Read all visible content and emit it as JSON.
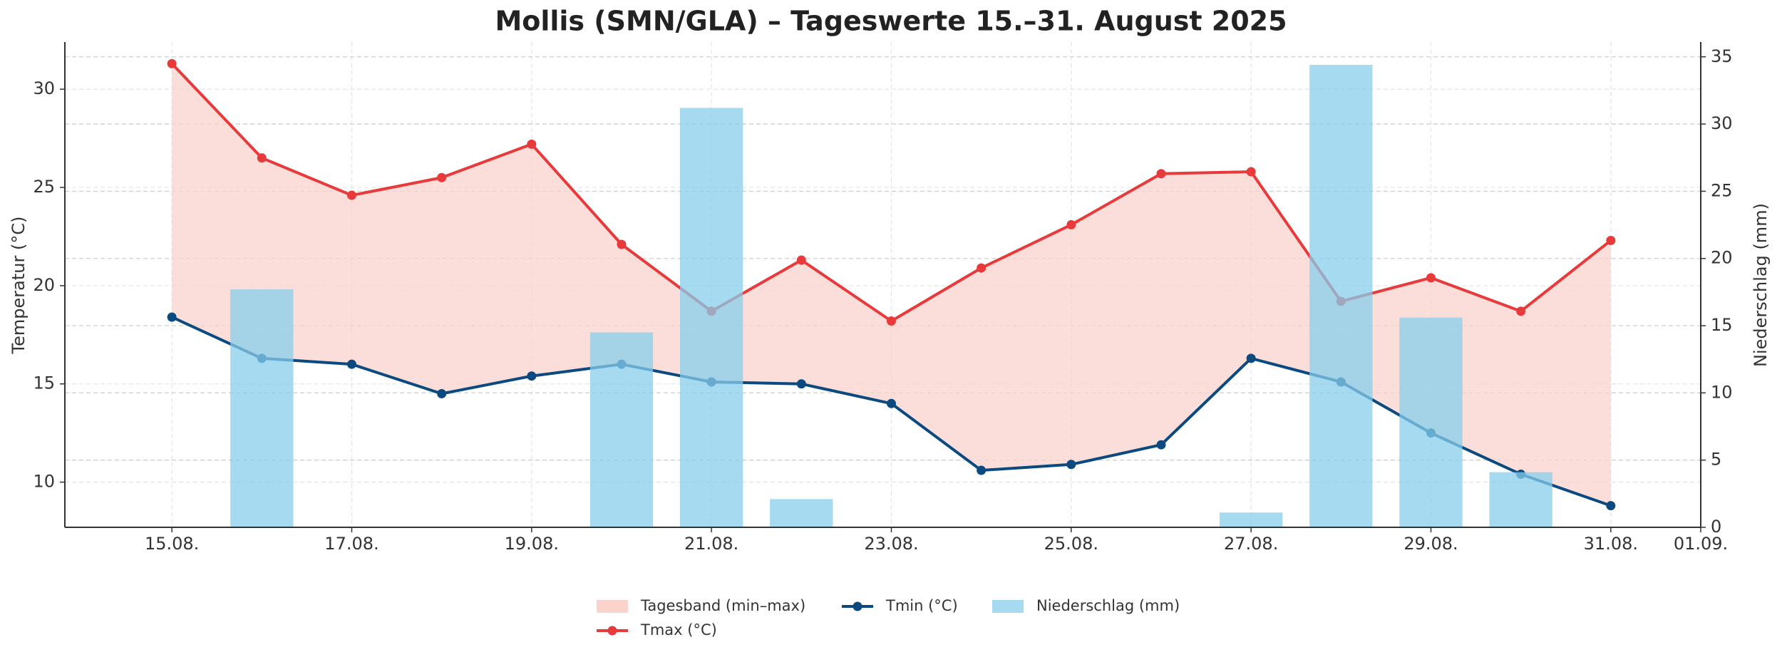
{
  "chart_data": {
    "type": "line",
    "title": "Mollis (SMN/GLA) – Tageswerte 15.–31. August 2025",
    "x": [
      "15.08.",
      "16.08.",
      "17.08.",
      "18.08.",
      "19.08.",
      "20.08.",
      "21.08.",
      "22.08.",
      "23.08.",
      "24.08.",
      "25.08.",
      "26.08.",
      "27.08.",
      "28.08.",
      "29.08.",
      "30.08.",
      "31.08."
    ],
    "xticks": [
      "15.08.",
      "17.08.",
      "19.08.",
      "21.08.",
      "23.08.",
      "25.08.",
      "27.08.",
      "29.08.",
      "31.08.",
      "01.09."
    ],
    "ylabel": "Temperatur (°C)",
    "y2label": "Niederschlag (mm)",
    "ylim": [
      7.7,
      32.4
    ],
    "yticks": [
      10,
      15,
      20,
      25,
      30
    ],
    "y2lim": [
      0,
      36.1
    ],
    "y2ticks": [
      0,
      5,
      10,
      15,
      20,
      25,
      30,
      35
    ],
    "grid": true,
    "legend": "bottom",
    "band": {
      "name": "Tagesband (min–max)",
      "color": "#f9d3cc"
    },
    "series": [
      {
        "name": "Tmax (°C)",
        "color": "#e8393b",
        "type": "line",
        "values": [
          31.3,
          26.5,
          24.6,
          25.5,
          27.2,
          22.1,
          18.7,
          21.3,
          18.2,
          20.9,
          23.1,
          25.7,
          25.8,
          19.2,
          20.4,
          18.7,
          22.3
        ]
      },
      {
        "name": "Tmin (°C)",
        "color": "#0b4a80",
        "type": "line",
        "values": [
          18.4,
          16.3,
          16.0,
          14.5,
          15.4,
          16.0,
          15.1,
          15.0,
          14.0,
          10.6,
          10.9,
          11.9,
          16.3,
          15.1,
          12.5,
          10.4,
          8.8
        ]
      },
      {
        "name": "Niederschlag (mm)",
        "color": "#87ceeb",
        "type": "bar",
        "axis": "y2",
        "values": [
          0,
          17.7,
          0,
          0,
          0,
          14.5,
          31.2,
          2.1,
          0,
          0,
          0,
          0,
          1.1,
          34.4,
          15.6,
          4.1,
          0
        ]
      }
    ]
  }
}
